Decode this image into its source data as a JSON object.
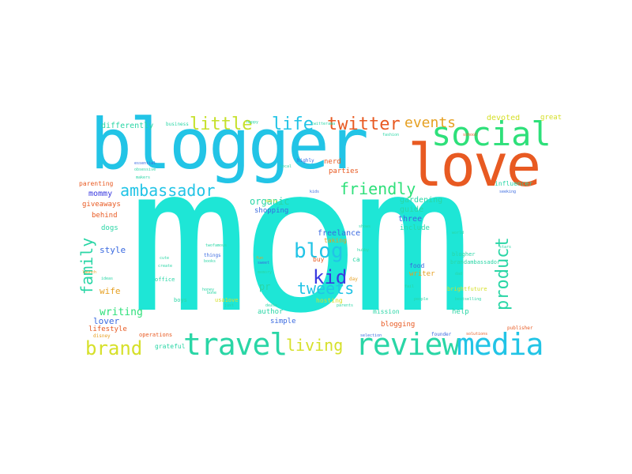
{
  "words": [
    {
      "text": "mom",
      "color": "#1ee6d6"
    },
    {
      "text": "blogger",
      "color": "#22c4e6"
    },
    {
      "text": "love",
      "color": "#e85a22"
    },
    {
      "text": "social",
      "color": "#2ee07a"
    },
    {
      "text": "travel",
      "color": "#2ad6a6"
    },
    {
      "text": "review",
      "color": "#2ad6a6"
    },
    {
      "text": "media",
      "color": "#22c4e6"
    },
    {
      "text": "brand",
      "color": "#d6e02a"
    },
    {
      "text": "living",
      "color": "#d6e02a"
    },
    {
      "text": "little",
      "color": "#c6e02a"
    },
    {
      "text": "life",
      "color": "#22c4e6"
    },
    {
      "text": "twitter",
      "color": "#e85a22"
    },
    {
      "text": "events",
      "color": "#e6a022"
    },
    {
      "text": "ambassador",
      "color": "#22c4e6"
    },
    {
      "text": "friendly",
      "color": "#2ee07a"
    },
    {
      "text": "blog",
      "color": "#22c4e6"
    },
    {
      "text": "kid",
      "color": "#3a3ae0"
    },
    {
      "text": "tweets",
      "color": "#22c4e6"
    },
    {
      "text": "product",
      "color": "#2ad6a6"
    },
    {
      "text": "family",
      "color": "#2ad6a6"
    },
    {
      "text": "writing",
      "color": "#2ee07a"
    },
    {
      "text": "organic",
      "color": "#2ad6a6"
    },
    {
      "text": "freelance",
      "color": "#3a6ae0"
    },
    {
      "text": "gardening",
      "color": "#2ad6a6"
    },
    {
      "text": "guide",
      "color": "#2ad6a6"
    },
    {
      "text": "three",
      "color": "#3a6ae0"
    },
    {
      "text": "include",
      "color": "#2ad6a6"
    },
    {
      "text": "shopping",
      "color": "#3a6ae0"
    },
    {
      "text": "devoted",
      "color": "#d6e02a"
    },
    {
      "text": "great",
      "color": "#d6e02a"
    },
    {
      "text": "differently",
      "color": "#2ad6a6"
    },
    {
      "text": "mommy",
      "color": "#3a3ae0"
    },
    {
      "text": "giveaways",
      "color": "#e85a22"
    },
    {
      "text": "behind",
      "color": "#e85a22"
    },
    {
      "text": "parenting",
      "color": "#e85a22"
    },
    {
      "text": "parties",
      "color": "#e85a22"
    },
    {
      "text": "nerd",
      "color": "#e85a22"
    },
    {
      "text": "dogs",
      "color": "#2ad6a6"
    },
    {
      "text": "style",
      "color": "#3a6ae0"
    },
    {
      "text": "wife",
      "color": "#e6a022"
    },
    {
      "text": "lover",
      "color": "#3a6ae0"
    },
    {
      "text": "lifestyle",
      "color": "#e85a22"
    },
    {
      "text": "pr",
      "color": "#2ad6a6"
    },
    {
      "text": "author",
      "color": "#2ad6a6"
    },
    {
      "text": "simple",
      "color": "#3a6ae0"
    },
    {
      "text": "blogging",
      "color": "#e85a22"
    },
    {
      "text": "help",
      "color": "#2ad6a6"
    },
    {
      "text": "writer",
      "color": "#e6a022"
    },
    {
      "text": "food",
      "color": "#e6a022"
    },
    {
      "text": "ca",
      "color": "#3a6ae0"
    },
    {
      "text": "buy",
      "color": "#2ad6a6"
    },
    {
      "text": "taking",
      "color": "#e85a22"
    },
    {
      "text": "hosting",
      "color": "#e6a022"
    },
    {
      "text": "mission",
      "color": "#3a6ae0"
    },
    {
      "text": "influencer",
      "color": "#d6e02a"
    },
    {
      "text": "grateful",
      "color": "#2ad6a6"
    },
    {
      "text": "operations",
      "color": "#2ad6a6"
    },
    {
      "text": "boys",
      "color": "#2ad6a6"
    },
    {
      "text": "usa1ove",
      "color": "#e85a22"
    },
    {
      "text": "disney",
      "color": "#2ad6a6"
    },
    {
      "text": "founder",
      "color": "#d6e02a"
    },
    {
      "text": "solutions",
      "color": "#e6a022"
    },
    {
      "text": "selection",
      "color": "#3a6ae0"
    },
    {
      "text": "brandambassador",
      "color": "#e85a22"
    },
    {
      "text": "brightfuture",
      "color": "#3a6ae0"
    },
    {
      "text": "blogher",
      "color": "#2ad6a6"
    },
    {
      "text": "office",
      "color": "#d6e02a"
    },
    {
      "text": "day",
      "color": "#2ad6a6"
    },
    {
      "text": "fail",
      "color": "#2ad6a6"
    },
    {
      "text": "parents",
      "color": "#e6a022"
    },
    {
      "text": "people",
      "color": "#2ad6a6"
    },
    {
      "text": "bestselling",
      "color": "#2ad6a6"
    },
    {
      "text": "publisher",
      "color": "#2ad6a6"
    },
    {
      "text": "launch",
      "color": "#2ad6a6"
    },
    {
      "text": "world",
      "color": "#e85a22"
    },
    {
      "text": "twofamous",
      "color": "#e6a022"
    },
    {
      "text": "things",
      "color": "#2ad6a6"
    },
    {
      "text": "hubby",
      "color": "#2ad6a6"
    },
    {
      "text": "shows",
      "color": "#3a6ae0"
    },
    {
      "text": "essential",
      "color": "#2ad6a6"
    },
    {
      "text": "obsessive",
      "color": "#2ad6a6"
    },
    {
      "text": "business",
      "color": "#3a6ae0"
    },
    {
      "text": "twitterama",
      "color": "#2ad6a6"
    },
    {
      "text": "local",
      "color": "#2ad6a6"
    },
    {
      "text": "highly",
      "color": "#2ad6a6"
    },
    {
      "text": "cute",
      "color": "#2ad6a6"
    },
    {
      "text": "create",
      "color": "#3a6ae0"
    },
    {
      "text": "books",
      "color": "#2ad6a6"
    },
    {
      "text": "honey",
      "color": "#2ad6a6"
    },
    {
      "text": "memory",
      "color": "#2ad6a6"
    },
    {
      "text": "sweet",
      "color": "#2ad6a6"
    },
    {
      "text": "dad",
      "color": "#2ad6a6"
    },
    {
      "text": "daily",
      "color": "#3a6ae0"
    },
    {
      "text": "bone",
      "color": "#2ad6a6"
    },
    {
      "text": "school",
      "color": "#d6e02a"
    },
    {
      "text": "happy",
      "color": "#2ad6a6"
    },
    {
      "text": "seeking",
      "color": "#e85a22"
    },
    {
      "text": "fashion",
      "color": "#2ad6a6"
    },
    {
      "text": "makers",
      "color": "#3a6ae0"
    },
    {
      "text": "fun",
      "color": "#2ad6a6"
    },
    {
      "text": "kids",
      "color": "#2ad6a6"
    },
    {
      "text": "just",
      "color": "#e6a022"
    },
    {
      "text": "deals",
      "color": "#3a6ae0"
    },
    {
      "text": "ideas",
      "color": "#2ad6a6"
    },
    {
      "text": "stars",
      "color": "#2ad6a6"
    },
    {
      "text": "coupon",
      "color": "#2ad6a6"
    },
    {
      "text": "homemaker",
      "color": "#2ad6a6"
    }
  ]
}
